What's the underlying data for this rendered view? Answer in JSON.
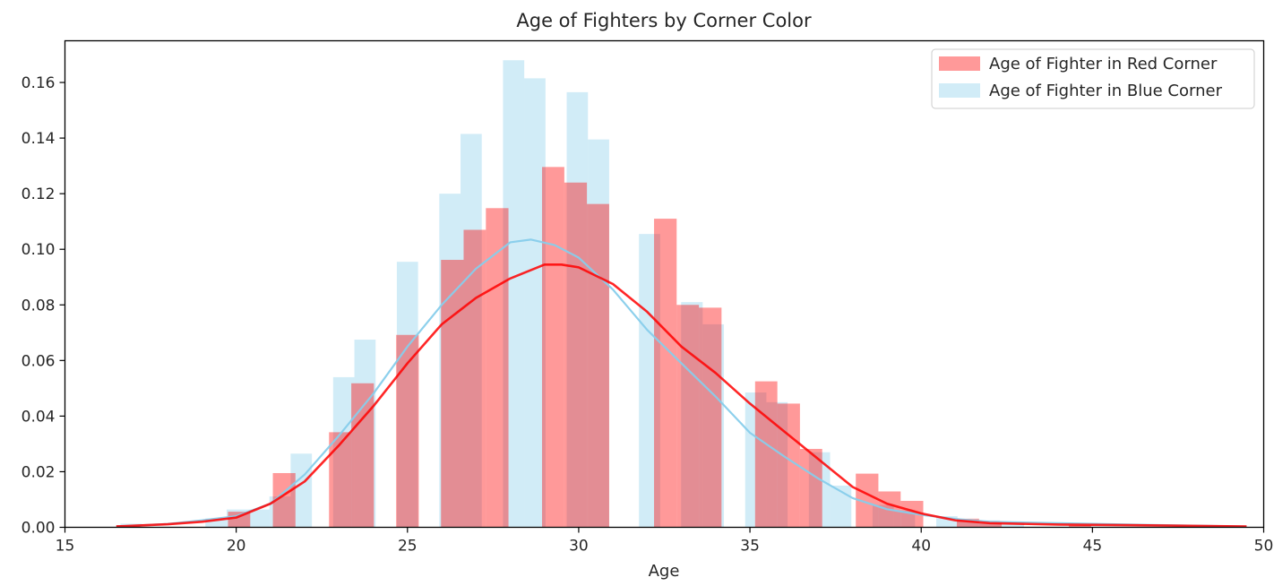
{
  "chart_data": {
    "type": "histogram",
    "title": "Age of Fighters by Corner Color",
    "xlabel": "Age",
    "ylabel": "",
    "xlim": [
      15,
      50
    ],
    "ylim": [
      0,
      0.175
    ],
    "xticks": [
      15,
      20,
      25,
      30,
      35,
      40,
      45,
      50
    ],
    "yticks": [
      0.0,
      0.02,
      0.04,
      0.06,
      0.08,
      0.1,
      0.12,
      0.14,
      0.16
    ],
    "grid": false,
    "legend_position": "top-right",
    "series": [
      {
        "name": "Age of Fighter in Blue Corner",
        "color": "#87ceeb",
        "bars": [
          {
            "x0": 16.62,
            "x1": 17.25,
            "y": 0.0013
          },
          {
            "x0": 19.1,
            "x1": 19.72,
            "y": 0.0032
          },
          {
            "x0": 19.72,
            "x1": 20.35,
            "y": 0.0064
          },
          {
            "x0": 20.35,
            "x1": 20.97,
            "y": 0.0064
          },
          {
            "x0": 20.97,
            "x1": 21.59,
            "y": 0.0111
          },
          {
            "x0": 21.59,
            "x1": 22.21,
            "y": 0.0265
          },
          {
            "x0": 22.83,
            "x1": 23.45,
            "y": 0.054
          },
          {
            "x0": 23.45,
            "x1": 24.07,
            "y": 0.0675
          },
          {
            "x0": 24.69,
            "x1": 25.31,
            "y": 0.0955
          },
          {
            "x0": 25.93,
            "x1": 26.55,
            "y": 0.12
          },
          {
            "x0": 26.55,
            "x1": 27.17,
            "y": 0.1415
          },
          {
            "x0": 27.79,
            "x1": 28.41,
            "y": 0.168
          },
          {
            "x0": 28.41,
            "x1": 29.03,
            "y": 0.1615
          },
          {
            "x0": 29.65,
            "x1": 30.27,
            "y": 0.1565
          },
          {
            "x0": 30.27,
            "x1": 30.89,
            "y": 0.1395
          },
          {
            "x0": 31.76,
            "x1": 32.38,
            "y": 0.1055
          },
          {
            "x0": 32.99,
            "x1": 33.62,
            "y": 0.081
          },
          {
            "x0": 33.62,
            "x1": 34.24,
            "y": 0.073
          },
          {
            "x0": 34.86,
            "x1": 35.48,
            "y": 0.0485
          },
          {
            "x0": 35.48,
            "x1": 36.1,
            "y": 0.045
          },
          {
            "x0": 36.72,
            "x1": 37.34,
            "y": 0.027
          },
          {
            "x0": 37.34,
            "x1": 37.96,
            "y": 0.015
          },
          {
            "x0": 38.58,
            "x1": 39.2,
            "y": 0.008
          },
          {
            "x0": 39.2,
            "x1": 39.82,
            "y": 0.006
          },
          {
            "x0": 40.44,
            "x1": 41.06,
            "y": 0.004
          },
          {
            "x0": 41.06,
            "x1": 41.68,
            "y": 0.0025
          },
          {
            "x0": 41.68,
            "x1": 42.3,
            "y": 0.0025
          },
          {
            "x0": 42.3,
            "x1": 43.0,
            "y": 0.0013
          }
        ],
        "kde": [
          [
            16.5,
            0.0003
          ],
          [
            18,
            0.0012
          ],
          [
            19,
            0.0025
          ],
          [
            20,
            0.004
          ],
          [
            21,
            0.0085
          ],
          [
            22,
            0.019
          ],
          [
            23,
            0.033
          ],
          [
            24,
            0.048
          ],
          [
            25,
            0.065
          ],
          [
            26,
            0.08
          ],
          [
            27,
            0.093
          ],
          [
            28,
            0.1025
          ],
          [
            28.6,
            0.1035
          ],
          [
            29.3,
            0.1015
          ],
          [
            30,
            0.097
          ],
          [
            31,
            0.0855
          ],
          [
            32,
            0.071
          ],
          [
            33,
            0.059
          ],
          [
            34,
            0.047
          ],
          [
            35,
            0.034
          ],
          [
            36,
            0.0255
          ],
          [
            37,
            0.0175
          ],
          [
            38,
            0.0105
          ],
          [
            39,
            0.0065
          ],
          [
            40,
            0.0045
          ],
          [
            41,
            0.003
          ],
          [
            42,
            0.002
          ],
          [
            44,
            0.0015
          ],
          [
            46,
            0.001
          ],
          [
            49.5,
            0.0003
          ]
        ]
      },
      {
        "name": "Age of Fighter in Red Corner",
        "color": "#ff0000",
        "bars": [
          {
            "x0": 16.5,
            "x1": 17.2,
            "y": 0.0008
          },
          {
            "x0": 19.76,
            "x1": 20.41,
            "y": 0.0056
          },
          {
            "x0": 21.07,
            "x1": 21.73,
            "y": 0.0195
          },
          {
            "x0": 22.71,
            "x1": 23.36,
            "y": 0.0342
          },
          {
            "x0": 23.36,
            "x1": 24.02,
            "y": 0.0518
          },
          {
            "x0": 24.67,
            "x1": 25.33,
            "y": 0.0692
          },
          {
            "x0": 25.98,
            "x1": 26.64,
            "y": 0.0962
          },
          {
            "x0": 26.64,
            "x1": 27.29,
            "y": 0.107
          },
          {
            "x0": 27.29,
            "x1": 27.95,
            "y": 0.1148
          },
          {
            "x0": 28.93,
            "x1": 29.58,
            "y": 0.1296
          },
          {
            "x0": 29.58,
            "x1": 30.24,
            "y": 0.124
          },
          {
            "x0": 30.24,
            "x1": 30.89,
            "y": 0.1163
          },
          {
            "x0": 32.2,
            "x1": 32.86,
            "y": 0.111
          },
          {
            "x0": 32.86,
            "x1": 33.51,
            "y": 0.08
          },
          {
            "x0": 33.51,
            "x1": 34.17,
            "y": 0.079
          },
          {
            "x0": 35.15,
            "x1": 35.8,
            "y": 0.0525
          },
          {
            "x0": 35.8,
            "x1": 36.46,
            "y": 0.0445
          },
          {
            "x0": 36.46,
            "x1": 37.11,
            "y": 0.0282
          },
          {
            "x0": 38.09,
            "x1": 38.75,
            "y": 0.0193
          },
          {
            "x0": 38.75,
            "x1": 39.4,
            "y": 0.0129
          },
          {
            "x0": 39.4,
            "x1": 40.06,
            "y": 0.0095
          },
          {
            "x0": 41.04,
            "x1": 41.69,
            "y": 0.0031
          },
          {
            "x0": 41.69,
            "x1": 42.35,
            "y": 0.0015
          },
          {
            "x0": 44.31,
            "x1": 44.96,
            "y": 0.0008
          },
          {
            "x0": 48.24,
            "x1": 48.9,
            "y": 0.0004
          }
        ],
        "kde": [
          [
            16.5,
            0.0003
          ],
          [
            18,
            0.0011
          ],
          [
            19,
            0.002
          ],
          [
            20,
            0.0035
          ],
          [
            21,
            0.0085
          ],
          [
            22,
            0.0165
          ],
          [
            23,
            0.0295
          ],
          [
            24,
            0.0435
          ],
          [
            25,
            0.059
          ],
          [
            26,
            0.073
          ],
          [
            27,
            0.0825
          ],
          [
            28,
            0.0895
          ],
          [
            29,
            0.0945
          ],
          [
            29.5,
            0.0945
          ],
          [
            30,
            0.0935
          ],
          [
            31,
            0.0875
          ],
          [
            32,
            0.0775
          ],
          [
            33,
            0.065
          ],
          [
            34,
            0.0555
          ],
          [
            35,
            0.0445
          ],
          [
            36,
            0.0345
          ],
          [
            37,
            0.0245
          ],
          [
            38,
            0.0145
          ],
          [
            39,
            0.0085
          ],
          [
            40,
            0.005
          ],
          [
            41,
            0.0025
          ],
          [
            42,
            0.0015
          ],
          [
            44,
            0.001
          ],
          [
            46,
            0.0008
          ],
          [
            49.5,
            0.0003
          ]
        ]
      }
    ]
  }
}
